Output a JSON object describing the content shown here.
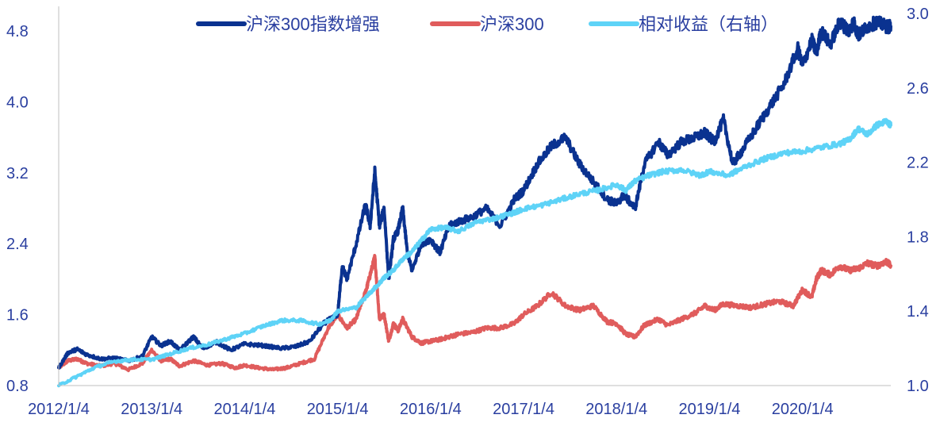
{
  "chart_data": {
    "type": "line",
    "title": "",
    "legend_position": "top",
    "grid": false,
    "x_tick_labels": [
      "2012/1/4",
      "2013/1/4",
      "2014/1/4",
      "2015/1/4",
      "2016/1/4",
      "2017/1/4",
      "2018/1/4",
      "2019/1/4",
      "2020/1/4"
    ],
    "x_range": [
      2012.0,
      2020.95
    ],
    "left_axis": {
      "range": [
        0.8,
        4.8
      ],
      "ticks": [
        "0.8",
        "1.6",
        "2.4",
        "3.2",
        "4.0",
        "4.8"
      ],
      "tick_values": [
        0.8,
        1.6,
        2.4,
        3.2,
        4.0,
        4.8
      ],
      "extra_top": 5.2
    },
    "right_axis": {
      "range": [
        1.0,
        3.0
      ],
      "ticks": [
        "1.0",
        "1.4",
        "1.8",
        "2.2",
        "2.6",
        "3.0"
      ],
      "tick_values": [
        1.0,
        1.4,
        1.8,
        2.2,
        2.6,
        3.0
      ]
    },
    "series": [
      {
        "name": "沪深300指数增强",
        "axis": "left",
        "color": "#0a3290",
        "x": [
          2012.0,
          2012.1,
          2012.2,
          2012.3,
          2012.45,
          2012.6,
          2012.75,
          2012.9,
          2013.0,
          2013.1,
          2013.2,
          2013.3,
          2013.45,
          2013.55,
          2013.7,
          2013.85,
          2014.0,
          2014.2,
          2014.4,
          2014.55,
          2014.7,
          2014.85,
          2014.92,
          2015.0,
          2015.05,
          2015.1,
          2015.2,
          2015.3,
          2015.35,
          2015.4,
          2015.45,
          2015.5,
          2015.55,
          2015.6,
          2015.65,
          2015.7,
          2015.75,
          2015.8,
          2015.9,
          2016.0,
          2016.1,
          2016.2,
          2016.3,
          2016.45,
          2016.6,
          2016.75,
          2016.9,
          2017.0,
          2017.15,
          2017.3,
          2017.45,
          2017.6,
          2017.75,
          2017.9,
          2018.0,
          2018.08,
          2018.2,
          2018.3,
          2018.45,
          2018.55,
          2018.7,
          2018.85,
          2018.95,
          2019.05,
          2019.15,
          2019.25,
          2019.35,
          2019.5,
          2019.65,
          2019.8,
          2019.95,
          2020.0,
          2020.1,
          2020.15,
          2020.2,
          2020.3,
          2020.4,
          2020.45,
          2020.5,
          2020.55,
          2020.6,
          2020.7,
          2020.8,
          2020.9,
          2020.95
        ],
        "values": [
          1.0,
          1.17,
          1.21,
          1.15,
          1.1,
          1.11,
          1.08,
          1.13,
          1.35,
          1.25,
          1.3,
          1.2,
          1.35,
          1.22,
          1.29,
          1.2,
          1.27,
          1.25,
          1.22,
          1.24,
          1.3,
          1.5,
          1.55,
          1.6,
          2.15,
          2.0,
          2.4,
          2.85,
          2.6,
          3.22,
          2.6,
          2.8,
          2.0,
          2.45,
          2.55,
          2.8,
          2.3,
          2.1,
          2.4,
          2.45,
          2.3,
          2.6,
          2.65,
          2.7,
          2.8,
          2.6,
          2.9,
          3.0,
          3.3,
          3.5,
          3.6,
          3.3,
          3.1,
          2.9,
          2.85,
          2.95,
          2.8,
          3.3,
          3.55,
          3.4,
          3.55,
          3.6,
          3.65,
          3.55,
          3.8,
          3.3,
          3.45,
          3.7,
          3.95,
          4.2,
          4.6,
          4.4,
          4.7,
          4.55,
          4.8,
          4.65,
          4.9,
          4.85,
          4.8,
          4.9,
          4.75,
          4.85,
          4.9,
          4.85,
          4.85
        ]
      },
      {
        "name": "沪深300",
        "axis": "left",
        "color": "#e05c5c",
        "x": [
          2012.0,
          2012.1,
          2012.2,
          2012.3,
          2012.45,
          2012.6,
          2012.75,
          2012.9,
          2013.0,
          2013.1,
          2013.2,
          2013.3,
          2013.45,
          2013.6,
          2013.75,
          2013.9,
          2014.0,
          2014.15,
          2014.3,
          2014.45,
          2014.6,
          2014.75,
          2014.9,
          2015.0,
          2015.1,
          2015.2,
          2015.25,
          2015.3,
          2015.35,
          2015.4,
          2015.45,
          2015.5,
          2015.55,
          2015.6,
          2015.65,
          2015.7,
          2015.8,
          2015.9,
          2016.0,
          2016.1,
          2016.2,
          2016.3,
          2016.45,
          2016.6,
          2016.75,
          2016.9,
          2017.0,
          2017.15,
          2017.3,
          2017.45,
          2017.6,
          2017.75,
          2017.9,
          2018.0,
          2018.1,
          2018.2,
          2018.3,
          2018.45,
          2018.55,
          2018.7,
          2018.85,
          2018.95,
          2019.05,
          2019.15,
          2019.3,
          2019.45,
          2019.6,
          2019.75,
          2019.9,
          2020.0,
          2020.1,
          2020.15,
          2020.2,
          2020.3,
          2020.4,
          2020.5,
          2020.6,
          2020.7,
          2020.8,
          2020.9,
          2020.95
        ],
        "values": [
          1.0,
          1.08,
          1.1,
          1.05,
          1.02,
          1.05,
          0.98,
          1.05,
          1.2,
          1.08,
          1.1,
          1.02,
          1.08,
          1.03,
          1.05,
          1.0,
          1.03,
          1.0,
          0.98,
          1.0,
          1.05,
          1.1,
          1.45,
          1.6,
          1.45,
          1.55,
          1.72,
          1.85,
          2.05,
          2.25,
          1.55,
          1.6,
          1.3,
          1.5,
          1.42,
          1.55,
          1.35,
          1.28,
          1.3,
          1.32,
          1.35,
          1.38,
          1.4,
          1.45,
          1.45,
          1.5,
          1.6,
          1.7,
          1.85,
          1.7,
          1.65,
          1.7,
          1.52,
          1.5,
          1.38,
          1.35,
          1.48,
          1.55,
          1.48,
          1.55,
          1.62,
          1.7,
          1.65,
          1.72,
          1.7,
          1.68,
          1.72,
          1.75,
          1.7,
          1.88,
          1.8,
          2.0,
          2.1,
          2.05,
          2.15,
          2.1,
          2.12,
          2.18,
          2.15,
          2.2,
          2.15
        ]
      },
      {
        "name": "相对收益（右轴）",
        "axis": "right",
        "color": "#5ed3f7",
        "x": [
          2012.0,
          2012.2,
          2012.4,
          2012.6,
          2012.8,
          2013.0,
          2013.2,
          2013.4,
          2013.6,
          2013.8,
          2014.0,
          2014.2,
          2014.4,
          2014.6,
          2014.8,
          2014.92,
          2015.0,
          2015.2,
          2015.35,
          2015.45,
          2015.5,
          2015.6,
          2015.7,
          2015.8,
          2015.9,
          2016.0,
          2016.15,
          2016.3,
          2016.5,
          2016.7,
          2016.9,
          2017.0,
          2017.2,
          2017.4,
          2017.6,
          2017.8,
          2018.0,
          2018.1,
          2018.2,
          2018.35,
          2018.5,
          2018.7,
          2018.9,
          2019.0,
          2019.2,
          2019.4,
          2019.6,
          2019.8,
          2020.0,
          2020.2,
          2020.4,
          2020.5,
          2020.6,
          2020.7,
          2020.8,
          2020.9,
          2020.95
        ],
        "values": [
          1.0,
          1.05,
          1.1,
          1.13,
          1.14,
          1.14,
          1.17,
          1.2,
          1.22,
          1.25,
          1.28,
          1.32,
          1.35,
          1.35,
          1.33,
          1.35,
          1.4,
          1.42,
          1.5,
          1.55,
          1.58,
          1.62,
          1.68,
          1.72,
          1.78,
          1.84,
          1.85,
          1.83,
          1.88,
          1.9,
          1.93,
          1.95,
          1.97,
          2.0,
          2.03,
          2.05,
          2.08,
          2.05,
          2.1,
          2.13,
          2.15,
          2.16,
          2.13,
          2.15,
          2.13,
          2.18,
          2.22,
          2.25,
          2.26,
          2.28,
          2.3,
          2.32,
          2.38,
          2.35,
          2.4,
          2.42,
          2.4
        ]
      }
    ]
  }
}
